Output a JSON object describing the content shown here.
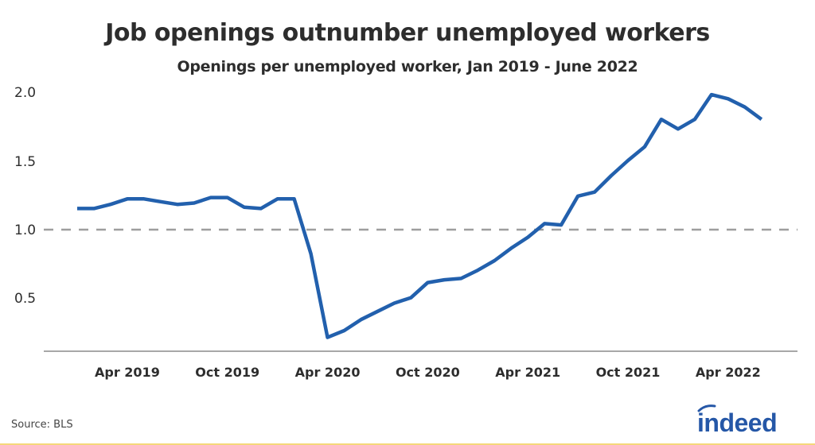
{
  "header": {
    "title": "Job openings outnumber unemployed workers",
    "subtitle": "Openings per unemployed worker, Jan 2019 - June 2022"
  },
  "footer": {
    "source": "Source: BLS",
    "logo_text": "indeed",
    "logo_color": "#2557a7"
  },
  "colors": {
    "line": "#2260ad",
    "reference_line": "#9e9e9e",
    "axis": "#8a8a8a",
    "text": "#2d2d2d",
    "bottom_rule": "#f5d77a"
  },
  "chart_data": {
    "type": "line",
    "title": "Job openings outnumber unemployed workers",
    "subtitle": "Openings per unemployed worker, Jan 2019 - June 2022",
    "xlabel": "",
    "ylabel": "",
    "ylim": [
      0.12,
      2.0
    ],
    "yticks": [
      0.5,
      1.0,
      1.5,
      2.0
    ],
    "ytick_labels": [
      "0.5",
      "1.0",
      "1.5",
      "2.0"
    ],
    "xtick_labels": [
      "Apr 2019",
      "Oct 2019",
      "Apr 2020",
      "Oct 2020",
      "Apr 2021",
      "Oct 2021",
      "Apr 2022"
    ],
    "xtick_index": [
      3,
      9,
      15,
      21,
      27,
      33,
      39
    ],
    "grid": false,
    "reference_line": {
      "y": 1.0,
      "style": "dashed"
    },
    "legend": null,
    "source": "Source: BLS",
    "x": [
      "Jan 2019",
      "Feb 2019",
      "Mar 2019",
      "Apr 2019",
      "May 2019",
      "Jun 2019",
      "Jul 2019",
      "Aug 2019",
      "Sep 2019",
      "Oct 2019",
      "Nov 2019",
      "Dec 2019",
      "Jan 2020",
      "Feb 2020",
      "Mar 2020",
      "Apr 2020",
      "May 2020",
      "Jun 2020",
      "Jul 2020",
      "Aug 2020",
      "Sep 2020",
      "Oct 2020",
      "Nov 2020",
      "Dec 2020",
      "Jan 2021",
      "Feb 2021",
      "Mar 2021",
      "Apr 2021",
      "May 2021",
      "Jun 2021",
      "Jul 2021",
      "Aug 2021",
      "Sep 2021",
      "Oct 2021",
      "Nov 2021",
      "Dec 2021",
      "Jan 2022",
      "Feb 2022",
      "Mar 2022",
      "Apr 2022",
      "May 2022",
      "Jun 2022"
    ],
    "series": [
      {
        "name": "Openings per unemployed worker",
        "values": [
          1.16,
          1.16,
          1.19,
          1.23,
          1.23,
          1.21,
          1.19,
          1.2,
          1.24,
          1.24,
          1.17,
          1.16,
          1.23,
          1.23,
          0.83,
          0.22,
          0.27,
          0.35,
          0.41,
          0.47,
          0.51,
          0.62,
          0.64,
          0.65,
          0.71,
          0.78,
          0.87,
          0.95,
          1.05,
          1.04,
          1.25,
          1.28,
          1.4,
          1.51,
          1.61,
          1.81,
          1.74,
          1.81,
          1.99,
          1.96,
          1.9,
          1.81
        ]
      }
    ]
  }
}
